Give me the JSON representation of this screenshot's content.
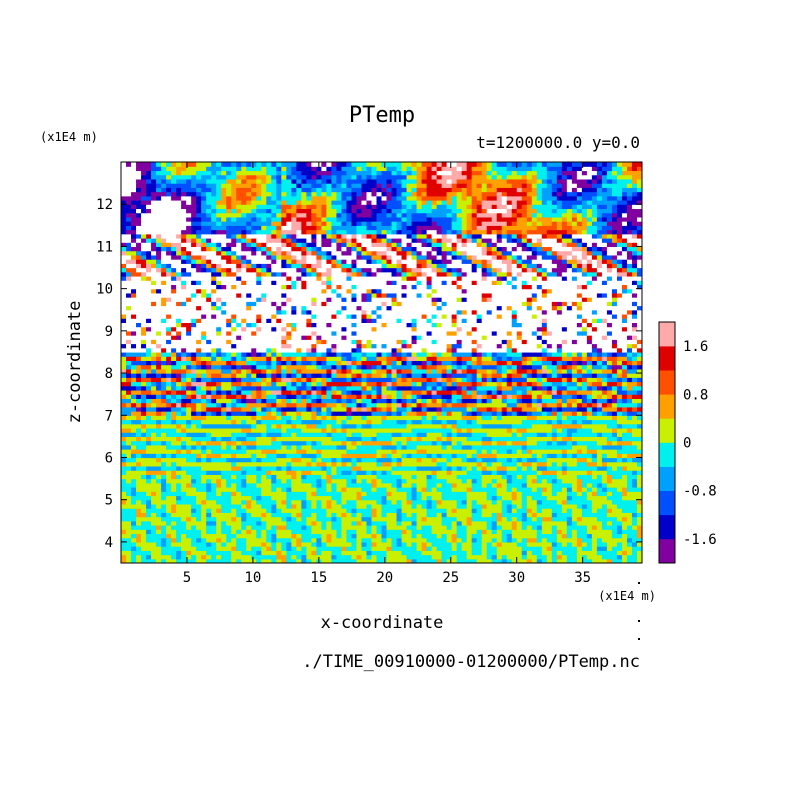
{
  "chart_data": {
    "type": "heatmap",
    "title": "PTemp",
    "subtitle": "t=1200000.0 y=0.0",
    "xlabel": "x-coordinate",
    "ylabel": "z-coordinate",
    "x_unit": "(x1E4 m)",
    "y_unit": "(x1E4 m)",
    "source_file": "./TIME_00910000-01200000/PTemp.nc",
    "xlim": [
      0,
      39.5
    ],
    "ylim": [
      3.5,
      13
    ],
    "x_ticks": [
      5,
      10,
      15,
      20,
      25,
      30,
      35
    ],
    "y_ticks": [
      4,
      5,
      6,
      7,
      8,
      9,
      10,
      11,
      12
    ],
    "x_tick_labels": [
      "5",
      "10",
      "15",
      "20",
      "25",
      "30",
      "35"
    ],
    "y_tick_labels": [
      "4",
      "5",
      "6",
      "7",
      "8",
      "9",
      "10",
      "11",
      "12"
    ],
    "colorbar": {
      "levels": [
        -2.0,
        -1.6,
        -1.2,
        -0.8,
        -0.4,
        0.0,
        0.4,
        0.8,
        1.2,
        1.6,
        2.0
      ],
      "colors": [
        "#8000a0",
        "#0000c8",
        "#0050ff",
        "#00a0ff",
        "#00f0f0",
        "#c8f000",
        "#ffa000",
        "#ff5000",
        "#e00000",
        "#ffaaaa"
      ],
      "tick_values": [
        1.6,
        0.8,
        0,
        -0.8,
        -1.6
      ],
      "tick_labels": [
        "1.6",
        "0.8",
        "0",
        "-0.8",
        "-1.6"
      ]
    },
    "layers": [
      {
        "z_range": [
          3.5,
          4.7
        ],
        "pattern": "mixed cyan and yellow-green with small green/orange patches",
        "amplitude": 0.4
      },
      {
        "z_range": [
          4.7,
          5.6
        ],
        "pattern": "cyan dominant with yellow-green vertical plumes",
        "amplitude": 0.3
      },
      {
        "z_range": [
          5.6,
          7.0
        ],
        "pattern": "thin horizontal bands, cyan/yellow-green with sparse blue and orange",
        "amplitude": 0.6
      },
      {
        "z_range": [
          7.0,
          8.5
        ],
        "pattern": "noisy thin bands of all colors, wavy",
        "amplitude": 1.6
      },
      {
        "z_range": [
          8.5,
          10.3
        ],
        "pattern": "mostly white (out of range) with scattered thin colored streaks",
        "amplitude": 3.0
      },
      {
        "z_range": [
          10.3,
          11.3
        ],
        "pattern": "large-amplitude waves, white lenses with red/blue rims",
        "amplitude": 2.4
      },
      {
        "z_range": [
          11.3,
          13.0
        ],
        "pattern": "large blobs: blue/purple cold patches on left, orange/yellow warm patches",
        "amplitude": 1.6
      }
    ]
  }
}
